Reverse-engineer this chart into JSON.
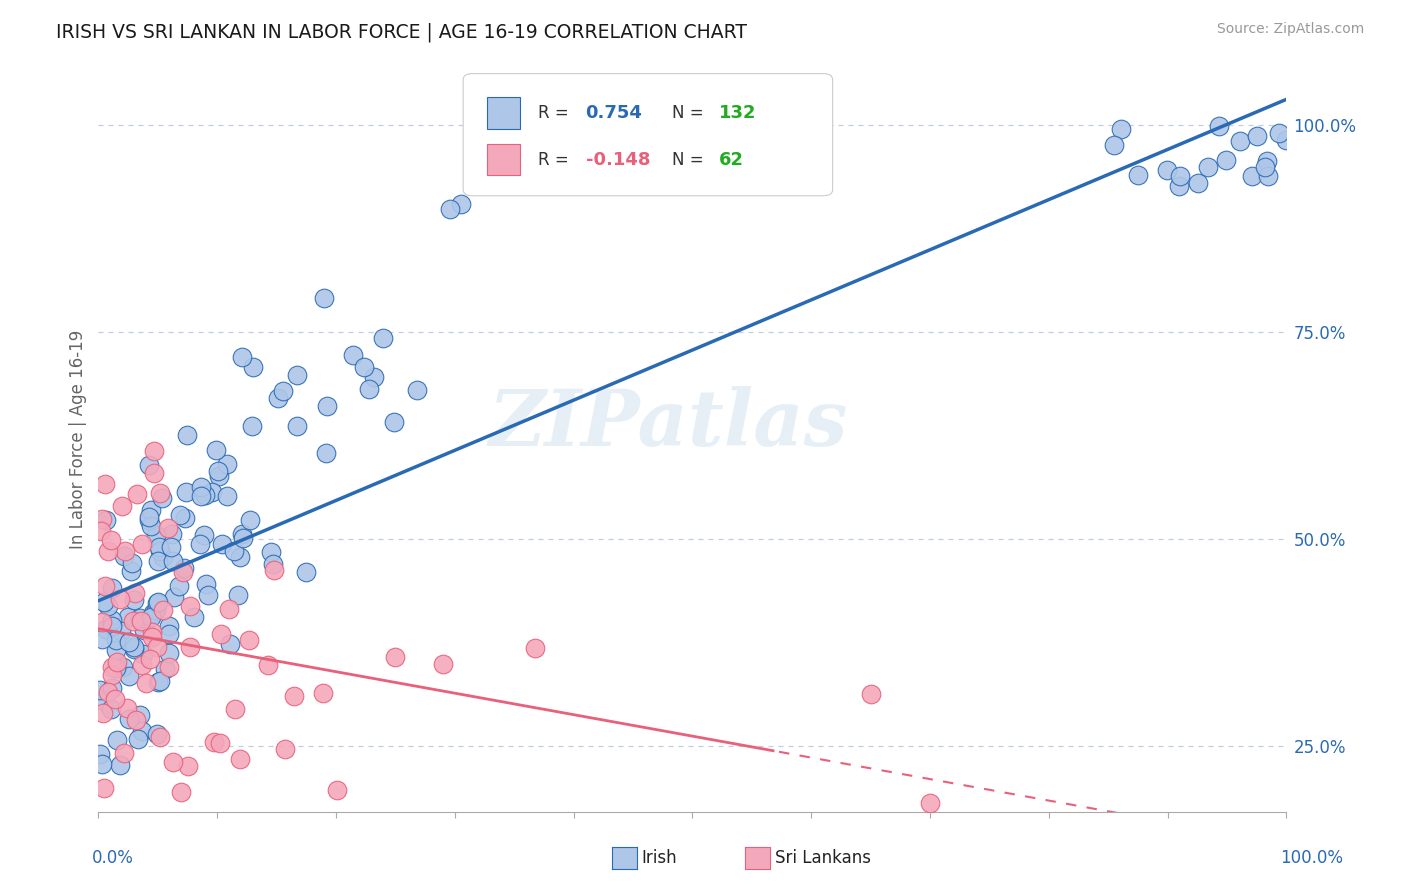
{
  "title": "IRISH VS SRI LANKAN IN LABOR FORCE | AGE 16-19 CORRELATION CHART",
  "source": "Source: ZipAtlas.com",
  "ylabel": "In Labor Force | Age 16-19",
  "R_irish": 0.754,
  "N_irish": 132,
  "R_sri": -0.148,
  "N_sri": 62,
  "irish_color": "#aec6e8",
  "sri_color": "#f4a8bc",
  "irish_line_color": "#2a6ab5",
  "sri_line_color": "#e8607a",
  "watermark_color": "#d5e3f0",
  "background_color": "#ffffff",
  "grid_color": "#c0cfe0",
  "N_color": "#22aa22",
  "legend_R_color_irish": "#2a6ab5",
  "legend_R_color_sri": "#e8607a"
}
